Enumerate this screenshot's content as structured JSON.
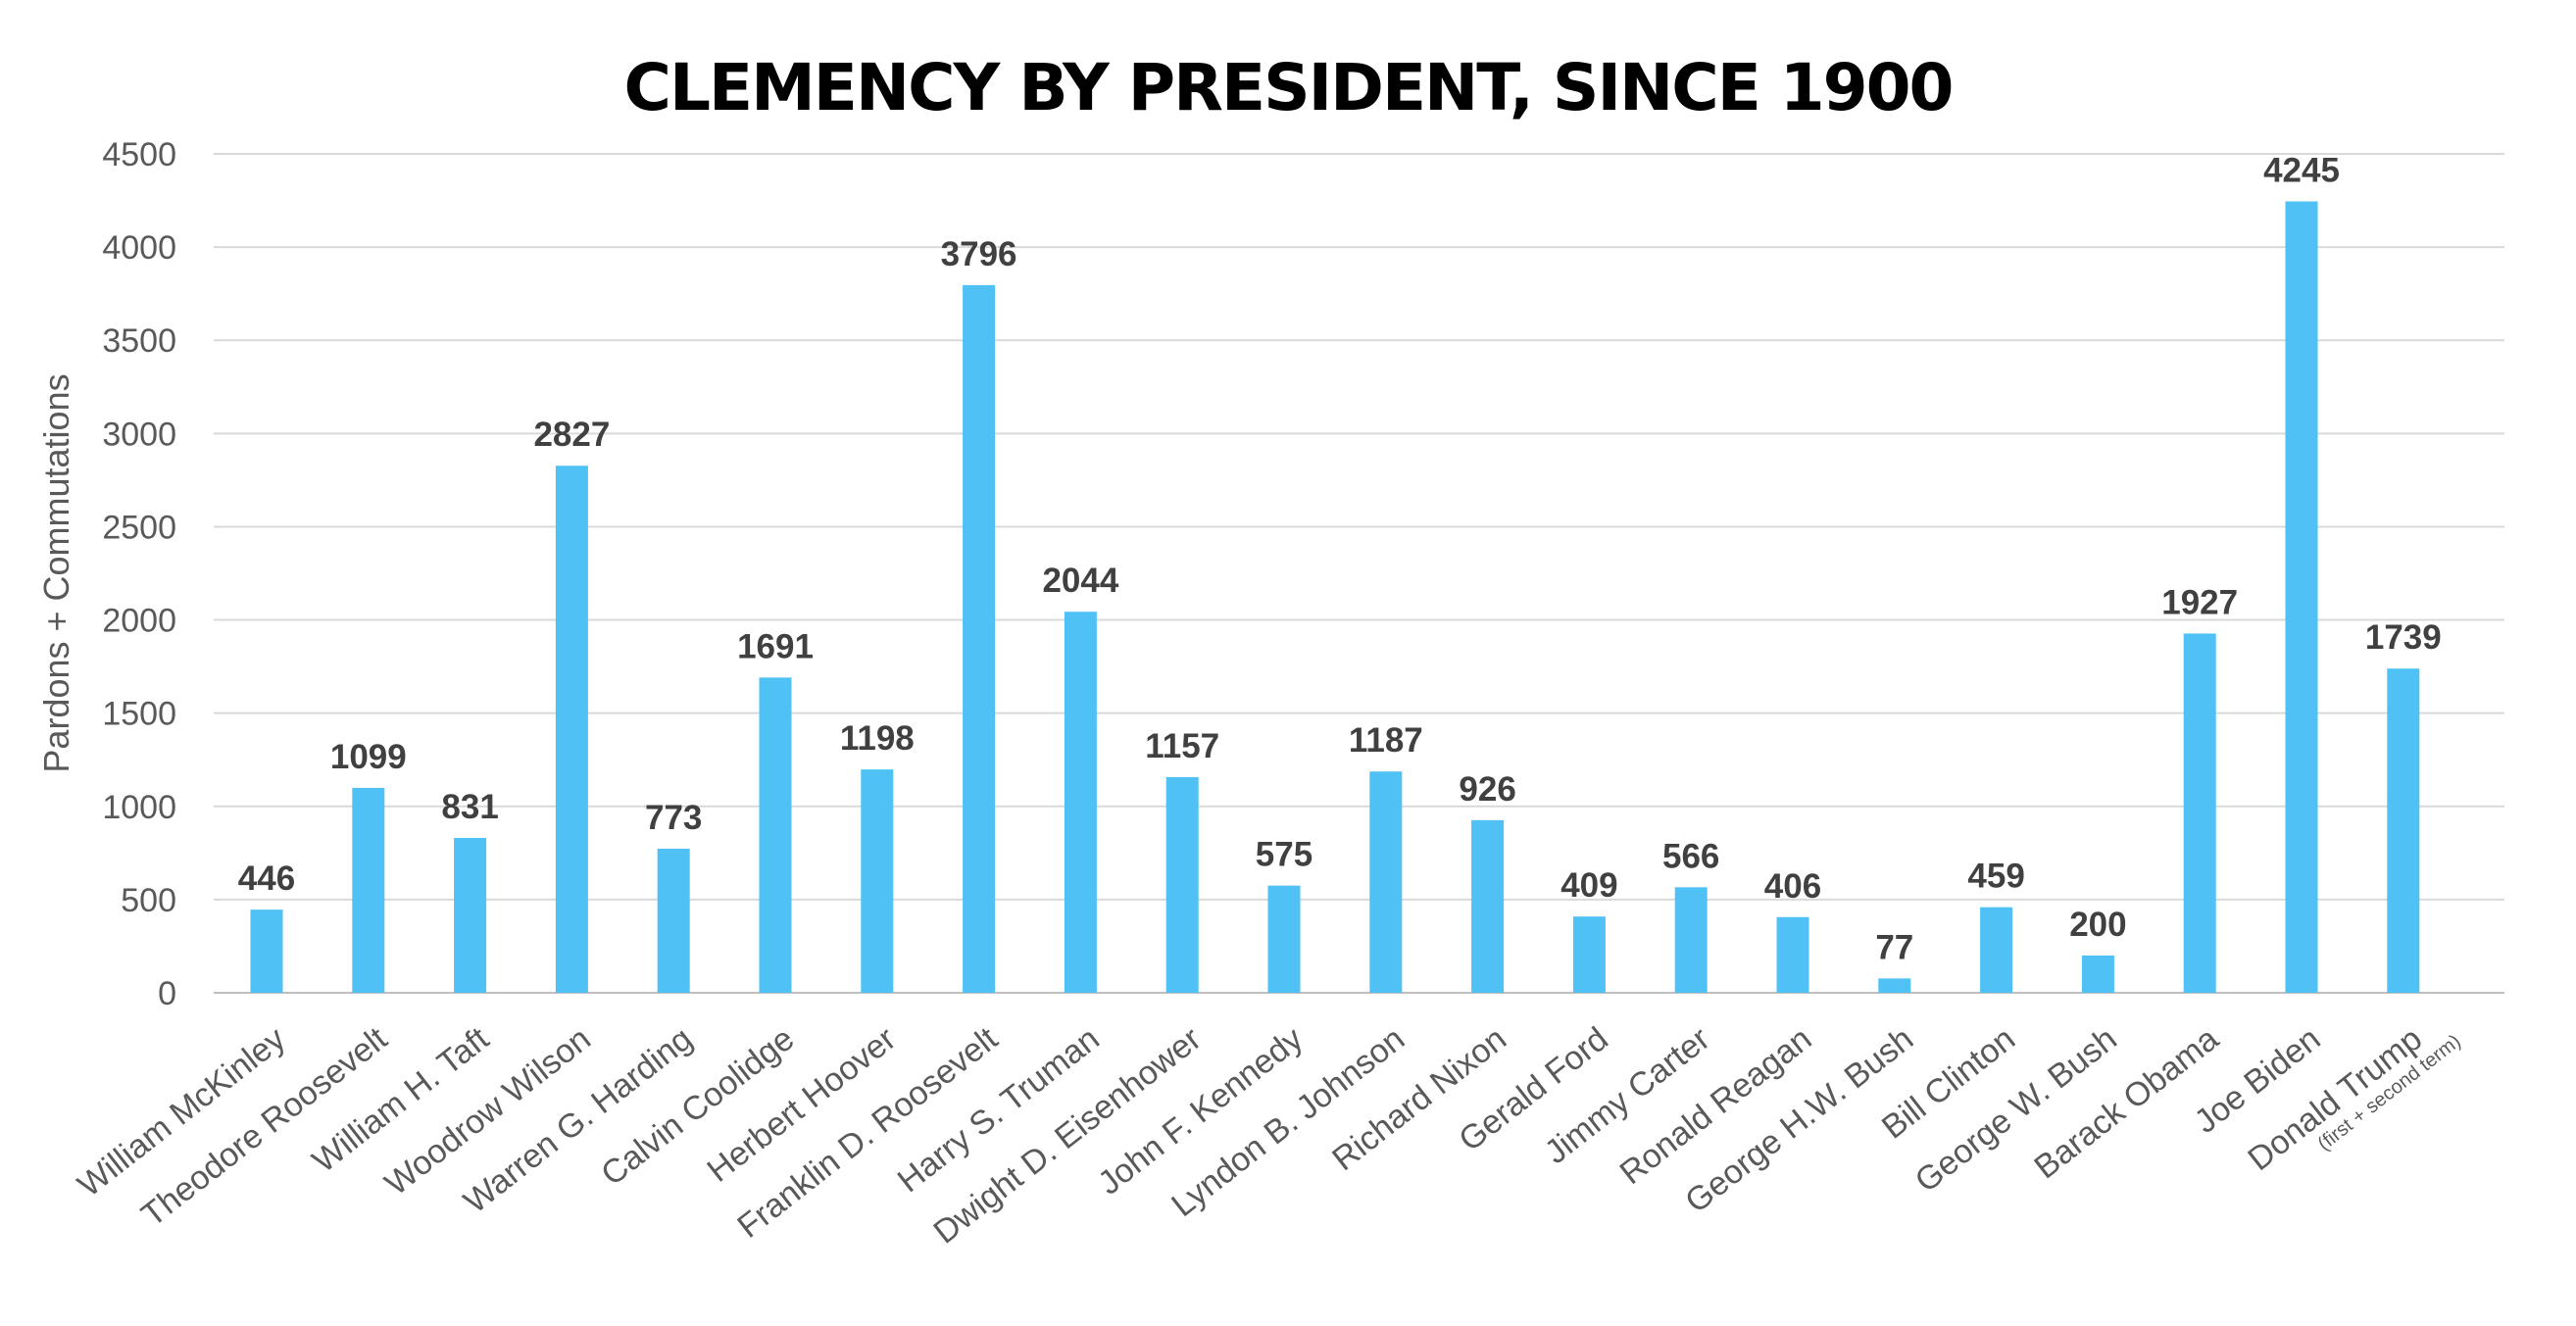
{
  "chart_data": {
    "type": "bar",
    "title": "CLEMENCY BY PRESIDENT, SINCE 1900",
    "xlabel": "",
    "ylabel": "Pardons + Commutations",
    "ylim": [
      0,
      4500
    ],
    "yticks": [
      0,
      500,
      1000,
      1500,
      2000,
      2500,
      3000,
      3500,
      4000,
      4500
    ],
    "grid": true,
    "legend": "none",
    "bar_color": "#4FC1F5",
    "categories": [
      "William McKinley",
      "Theodore Roosevelt",
      "William H. Taft",
      "Woodrow Wilson",
      "Warren G. Harding",
      "Calvin Coolidge",
      "Herbert Hoover",
      "Franklin D. Roosevelt",
      "Harry S. Truman",
      "Dwight D. Eisenhower",
      "John F. Kennedy",
      "Lyndon B. Johnson",
      "Richard Nixon",
      "Gerald Ford",
      "Jimmy Carter",
      "Ronald Reagan",
      "George H.W. Bush",
      "Bill Clinton",
      "George W. Bush",
      "Barack Obama",
      "Joe Biden",
      "Donald Trump"
    ],
    "category_sublabels": [
      "",
      "",
      "",
      "",
      "",
      "",
      "",
      "",
      "",
      "",
      "",
      "",
      "",
      "",
      "",
      "",
      "",
      "",
      "",
      "",
      "",
      "(first + second term)"
    ],
    "values": [
      446,
      1099,
      831,
      2827,
      773,
      1691,
      1198,
      3796,
      2044,
      1157,
      575,
      1187,
      926,
      409,
      566,
      406,
      77,
      459,
      200,
      1927,
      4245,
      1739
    ]
  }
}
